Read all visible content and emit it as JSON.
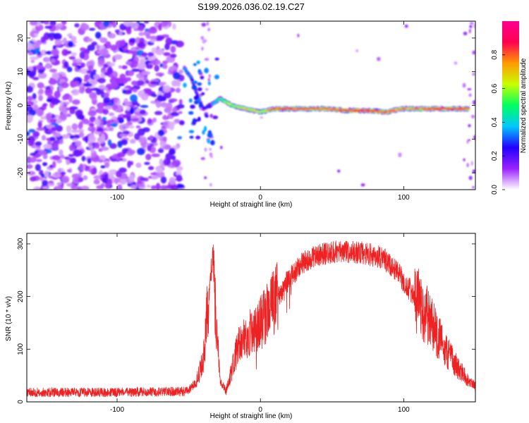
{
  "title": "S199.2026.036.02.19.C27",
  "chart_data": [
    {
      "type": "heatmap",
      "xlabel": "Height of straight line (km)",
      "ylabel": "Frequency (Hz)",
      "xlim": [
        -163,
        150
      ],
      "ylim": [
        -25,
        25
      ],
      "x_ticks": [
        -100,
        0,
        100
      ],
      "y_ticks": [
        -20,
        -10,
        0,
        10,
        20
      ],
      "colorbar": {
        "label": "Normalized spectral amplitude",
        "range": [
          0,
          1
        ],
        "ticks": [
          "0.0",
          "0.2",
          "0.4",
          "0.6",
          "0.8"
        ],
        "colors": [
          "#ffffff",
          "#9a22ff",
          "#2200ff",
          "#00c8ff",
          "#00ff60",
          "#c8ff00",
          "#ff9a00",
          "#ff0050",
          "#ff0090"
        ]
      },
      "noise_region_x": [
        -163,
        -55
      ],
      "signal_ridge": [
        {
          "x": -53,
          "f": 11,
          "a": 0.35
        },
        {
          "x": -48,
          "f": 8,
          "a": 0.3
        },
        {
          "x": -44,
          "f": 3,
          "a": 0.25
        },
        {
          "x": -40,
          "f": -1,
          "a": 0.22
        },
        {
          "x": -35,
          "f": 0,
          "a": 0.3
        },
        {
          "x": -28,
          "f": 2,
          "a": 0.5
        },
        {
          "x": -20,
          "f": 0,
          "a": 0.6
        },
        {
          "x": -10,
          "f": -1,
          "a": 0.7
        },
        {
          "x": 0,
          "f": -2,
          "a": 0.6
        },
        {
          "x": 10,
          "f": -1,
          "a": 0.85
        },
        {
          "x": 20,
          "f": -1,
          "a": 0.9
        },
        {
          "x": 30,
          "f": -1,
          "a": 0.8
        },
        {
          "x": 45,
          "f": -1,
          "a": 0.8
        },
        {
          "x": 60,
          "f": -1.5,
          "a": 0.9
        },
        {
          "x": 75,
          "f": -1.5,
          "a": 0.9
        },
        {
          "x": 88,
          "f": -2,
          "a": 0.85
        },
        {
          "x": 98,
          "f": -1,
          "a": 0.7
        },
        {
          "x": 110,
          "f": -1,
          "a": 0.8
        },
        {
          "x": 125,
          "f": -1,
          "a": 0.9
        },
        {
          "x": 145,
          "f": -1,
          "a": 0.85
        }
      ]
    },
    {
      "type": "line",
      "xlabel": "Height of straight line (km)",
      "ylabel": "SNR (10 * v/v)",
      "xlim": [
        -163,
        150
      ],
      "ylim": [
        0,
        320
      ],
      "x_ticks": [
        -100,
        0,
        100
      ],
      "y_ticks": [
        0,
        100,
        200,
        300
      ],
      "color": "#ee2222",
      "envelope": [
        {
          "x": -163,
          "y": 18
        },
        {
          "x": -100,
          "y": 18
        },
        {
          "x": -52,
          "y": 20
        },
        {
          "x": -45,
          "y": 35
        },
        {
          "x": -40,
          "y": 80
        },
        {
          "x": -36,
          "y": 200
        },
        {
          "x": -33,
          "y": 270
        },
        {
          "x": -31,
          "y": 150
        },
        {
          "x": -28,
          "y": 40
        },
        {
          "x": -24,
          "y": 20
        },
        {
          "x": -20,
          "y": 60
        },
        {
          "x": -15,
          "y": 110
        },
        {
          "x": -8,
          "y": 130
        },
        {
          "x": 0,
          "y": 150
        },
        {
          "x": 10,
          "y": 190
        },
        {
          "x": 20,
          "y": 235
        },
        {
          "x": 30,
          "y": 265
        },
        {
          "x": 40,
          "y": 280
        },
        {
          "x": 55,
          "y": 285
        },
        {
          "x": 70,
          "y": 283
        },
        {
          "x": 85,
          "y": 275
        },
        {
          "x": 95,
          "y": 250
        },
        {
          "x": 105,
          "y": 210
        },
        {
          "x": 115,
          "y": 170
        },
        {
          "x": 125,
          "y": 120
        },
        {
          "x": 135,
          "y": 75
        },
        {
          "x": 145,
          "y": 40
        },
        {
          "x": 150,
          "y": 30
        }
      ]
    }
  ]
}
